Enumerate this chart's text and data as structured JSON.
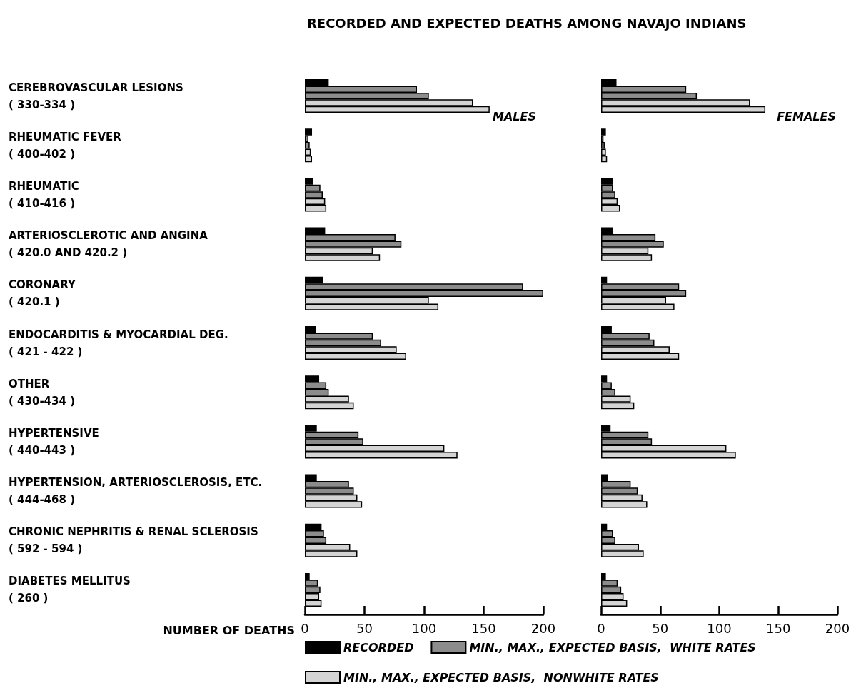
{
  "chart_data": [
    {
      "type": "bar",
      "orientation": "horizontal",
      "title": "RECORDED AND EXPECTED DEATHS AMONG NAVAJO INDIANS",
      "subtitle": "MALES",
      "xlabel": "NUMBER OF DEATHS",
      "categories": [
        "CEREBROVASCULAR LESIONS\n( 330-334 )",
        "RHEUMATIC FEVER\n( 400-402 )",
        "RHEUMATIC\n( 410-416 )",
        "ARTERIOSCLEROTIC AND ANGINA\n( 420.0 AND 420.2 )",
        "CORONARY\n( 420.1 )",
        "ENDOCARDITIS & MYOCARDIAL DEG.\n( 421 - 422 )",
        "OTHER\n( 430-434 )",
        "HYPERTENSIVE\n( 440-443 )",
        "HYPERTENSION, ARTERIOSCLEROSIS, ETC.\n( 444-468 )",
        "CHRONIC NEPHRITIS & RENAL SCLEROSIS\n( 592 - 594 )",
        "DIABETES MELLITUS\n( 260 )"
      ],
      "series": [
        {
          "name": "RECORDED",
          "color": "#000000",
          "values": [
            20,
            6,
            7,
            17,
            15,
            9,
            12,
            10,
            10,
            14,
            4
          ]
        },
        {
          "name": "MIN., MAX., EXPECTED BASIS,  WHITE RATES",
          "color": "#8c8c8c",
          "values": [
            94,
            3,
            13,
            76,
            183,
            57,
            18,
            45,
            37,
            16,
            11
          ]
        },
        {
          "color": "#8c8c8c",
          "values": [
            104,
            4,
            15,
            81,
            200,
            64,
            20,
            49,
            41,
            18,
            13
          ]
        },
        {
          "name": "MIN., MAX., EXPECTED BASIS,  NONWHITE RATES",
          "color": "#d4d4d4",
          "values": [
            141,
            5,
            17,
            57,
            104,
            77,
            37,
            117,
            44,
            38,
            12
          ]
        },
        {
          "color": "#d4d4d4",
          "values": [
            155,
            6,
            18,
            63,
            112,
            85,
            41,
            128,
            48,
            44,
            14
          ]
        }
      ],
      "xlim": [
        0,
        200
      ],
      "xticks": [
        0,
        50,
        100,
        150,
        200
      ],
      "grid": false,
      "legend": "bottom"
    },
    {
      "type": "bar",
      "orientation": "horizontal",
      "subtitle": "FEMALES",
      "series": [
        {
          "color": "#000000",
          "values": [
            13,
            4,
            10,
            10,
            5,
            9,
            5,
            8,
            6,
            5,
            4
          ]
        },
        {
          "color": "#8c8c8c",
          "values": [
            72,
            2,
            10,
            46,
            66,
            41,
            9,
            40,
            25,
            10,
            14
          ]
        },
        {
          "color": "#8c8c8c",
          "values": [
            81,
            3,
            12,
            53,
            72,
            45,
            12,
            43,
            31,
            12,
            17
          ]
        },
        {
          "color": "#d4d4d4",
          "values": [
            126,
            4,
            14,
            40,
            55,
            58,
            25,
            106,
            35,
            32,
            19
          ]
        },
        {
          "color": "#d4d4d4",
          "values": [
            139,
            5,
            16,
            43,
            62,
            66,
            28,
            114,
            39,
            36,
            22
          ]
        }
      ],
      "xlim": [
        0,
        200
      ],
      "xticks": [
        0,
        50,
        100,
        150,
        200
      ],
      "grid": false,
      "tick_labels": "x"
    }
  ]
}
